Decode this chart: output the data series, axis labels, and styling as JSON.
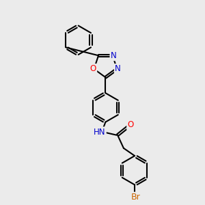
{
  "background_color": "#ebebeb",
  "bond_color": "#000000",
  "bond_width": 1.5,
  "atom_colors": {
    "N": "#0000cc",
    "O": "#ff0000",
    "Br": "#cc6600",
    "C": "#000000"
  },
  "font_size_atom": 8.5
}
